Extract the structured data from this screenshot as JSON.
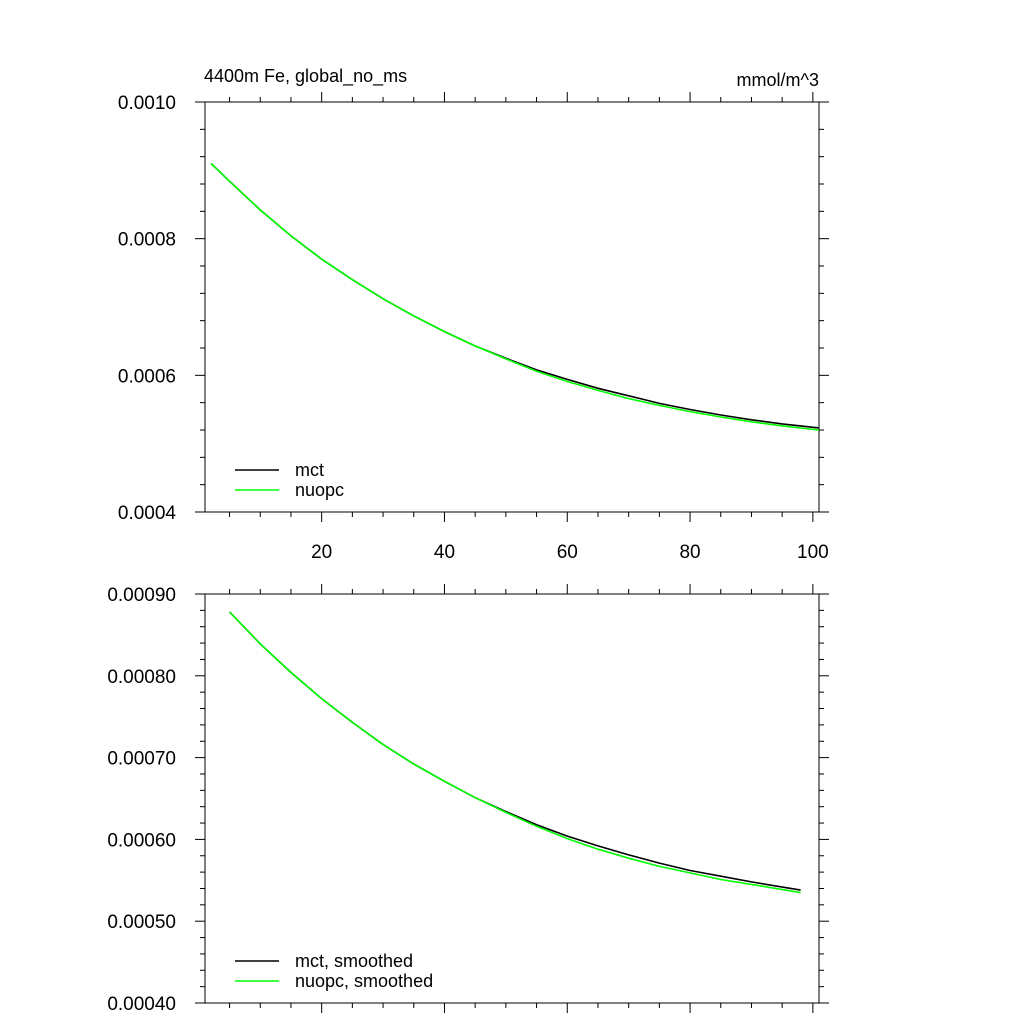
{
  "chart_data": [
    {
      "type": "line",
      "title": "4400m Fe, global_no_ms",
      "units_label": "mmol/m^3",
      "xlim": [
        1,
        101
      ],
      "ylim": [
        0.0004,
        0.001
      ],
      "xticks": [
        20,
        40,
        60,
        80,
        100
      ],
      "yticks": [
        "0.0004",
        "0.0006",
        "0.0008",
        "0.0010"
      ],
      "legend_position": "bottom-left",
      "grid": false,
      "series": [
        {
          "name": "mct",
          "color": "#000000",
          "x": [
            2,
            5,
            10,
            15,
            20,
            25,
            30,
            35,
            40,
            45,
            50,
            55,
            60,
            65,
            70,
            75,
            80,
            85,
            90,
            95,
            101
          ],
          "y": [
            0.00091,
            0.000884,
            0.000842,
            0.000804,
            0.00077,
            0.00074,
            0.000712,
            0.000687,
            0.000664,
            0.000643,
            0.000625,
            0.000608,
            0.000594,
            0.000581,
            0.00057,
            0.000559,
            0.00055,
            0.000542,
            0.000535,
            0.000529,
            0.000523
          ]
        },
        {
          "name": "nuopc",
          "color": "#00ff00",
          "x": [
            2,
            5,
            10,
            15,
            20,
            25,
            30,
            35,
            40,
            45,
            50,
            55,
            60,
            65,
            70,
            75,
            80,
            85,
            90,
            95,
            101
          ],
          "y": [
            0.00091,
            0.000884,
            0.000842,
            0.000804,
            0.00077,
            0.00074,
            0.000712,
            0.000687,
            0.000664,
            0.000643,
            0.000624,
            0.000606,
            0.000591,
            0.000578,
            0.000566,
            0.000556,
            0.000547,
            0.000539,
            0.000532,
            0.000526,
            0.00052
          ]
        }
      ]
    },
    {
      "type": "line",
      "title": "",
      "xlim": [
        1,
        101
      ],
      "ylim": [
        0.0004,
        0.0009
      ],
      "xticks": [
        20,
        40,
        60,
        80,
        100
      ],
      "show_xtick_labels": false,
      "yticks": [
        "0.00040",
        "0.00050",
        "0.00060",
        "0.00070",
        "0.00080",
        "0.00090"
      ],
      "legend_position": "bottom-left",
      "grid": false,
      "series": [
        {
          "name": "mct, smoothed",
          "color": "#000000",
          "x": [
            5,
            10,
            15,
            20,
            25,
            30,
            35,
            40,
            45,
            50,
            55,
            60,
            65,
            70,
            75,
            80,
            85,
            90,
            98
          ],
          "y": [
            0.000878,
            0.000839,
            0.000804,
            0.000772,
            0.000743,
            0.000716,
            0.000692,
            0.000671,
            0.000651,
            0.000634,
            0.000618,
            0.000604,
            0.000592,
            0.000581,
            0.000571,
            0.000562,
            0.000555,
            0.000548,
            0.000538
          ]
        },
        {
          "name": "nuopc, smoothed",
          "color": "#00ff00",
          "x": [
            5,
            10,
            15,
            20,
            25,
            30,
            35,
            40,
            45,
            50,
            55,
            60,
            65,
            70,
            75,
            80,
            85,
            90,
            98
          ],
          "y": [
            0.000878,
            0.000839,
            0.000804,
            0.000772,
            0.000743,
            0.000716,
            0.000692,
            0.000671,
            0.000651,
            0.000633,
            0.000616,
            0.000601,
            0.000588,
            0.000577,
            0.000567,
            0.000559,
            0.000551,
            0.000545,
            0.000535
          ]
        }
      ]
    }
  ]
}
